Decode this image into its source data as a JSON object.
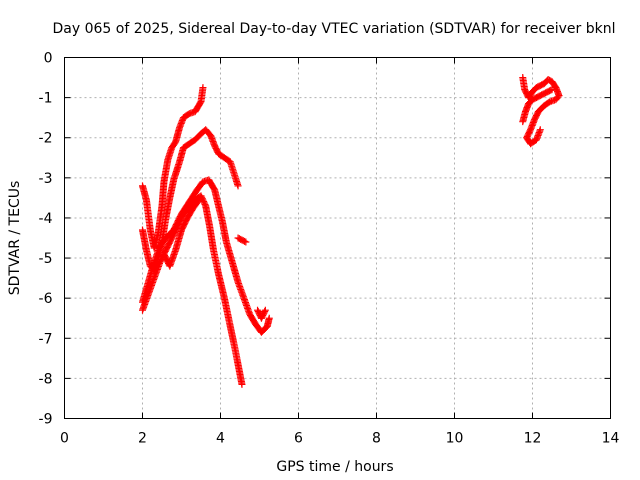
{
  "chart_data": {
    "type": "scatter",
    "title": "Day 065 of 2025, Sidereal Day-to-day VTEC variation (SDTVAR) for receiver bknl",
    "xlabel": "GPS time / hours",
    "ylabel": "SDTVAR / TECUs",
    "xlim": [
      0,
      14
    ],
    "ylim": [
      -9,
      0
    ],
    "xticks": [
      "0",
      "2",
      "4",
      "6",
      "8",
      "10",
      "12",
      "14"
    ],
    "yticks": [
      "0",
      "-1",
      "-2",
      "-3",
      "-4",
      "-5",
      "-6",
      "-7",
      "-8",
      "-9"
    ],
    "grid": true,
    "marker": "plus",
    "color": "#ff0000",
    "tracks": [
      [
        [
          2.0,
          -6.3
        ],
        [
          2.15,
          -5.9
        ],
        [
          2.3,
          -5.5
        ],
        [
          2.45,
          -5.1
        ],
        [
          2.6,
          -4.8
        ],
        [
          2.75,
          -4.5
        ],
        [
          2.9,
          -4.2
        ],
        [
          3.05,
          -3.9
        ],
        [
          3.2,
          -3.75
        ],
        [
          3.35,
          -3.55
        ],
        [
          3.5,
          -3.45
        ],
        [
          3.62,
          -3.7
        ],
        [
          3.72,
          -4.2
        ],
        [
          3.82,
          -4.8
        ],
        [
          3.95,
          -5.4
        ],
        [
          4.1,
          -6.0
        ],
        [
          4.25,
          -6.7
        ],
        [
          4.38,
          -7.3
        ],
        [
          4.5,
          -7.9
        ],
        [
          4.55,
          -8.15
        ]
      ],
      [
        [
          2.0,
          -6.1
        ],
        [
          2.15,
          -5.6
        ],
        [
          2.3,
          -5.1
        ],
        [
          2.45,
          -4.7
        ],
        [
          2.6,
          -4.5
        ],
        [
          2.8,
          -4.3
        ],
        [
          3.0,
          -3.9
        ],
        [
          3.2,
          -3.6
        ],
        [
          3.4,
          -3.3
        ],
        [
          3.55,
          -3.1
        ],
        [
          3.7,
          -3.05
        ],
        [
          3.85,
          -3.3
        ],
        [
          3.95,
          -3.7
        ],
        [
          4.05,
          -4.1
        ],
        [
          4.15,
          -4.6
        ],
        [
          4.3,
          -5.1
        ],
        [
          4.45,
          -5.6
        ],
        [
          4.6,
          -6.0
        ],
        [
          4.75,
          -6.4
        ],
        [
          4.9,
          -6.65
        ],
        [
          5.05,
          -6.85
        ],
        [
          5.2,
          -6.7
        ],
        [
          5.25,
          -6.5
        ]
      ],
      [
        [
          2.0,
          -4.3
        ],
        [
          2.1,
          -4.8
        ],
        [
          2.2,
          -5.2
        ],
        [
          2.3,
          -5.3
        ],
        [
          2.4,
          -5.0
        ],
        [
          2.5,
          -4.6
        ],
        [
          2.6,
          -4.0
        ],
        [
          2.7,
          -3.5
        ],
        [
          2.8,
          -3.05
        ],
        [
          2.95,
          -2.6
        ],
        [
          3.05,
          -2.25
        ],
        [
          3.2,
          -2.15
        ],
        [
          3.35,
          -2.05
        ],
        [
          3.5,
          -1.9
        ],
        [
          3.62,
          -1.8
        ],
        [
          3.75,
          -1.95
        ],
        [
          3.85,
          -2.2
        ],
        [
          3.95,
          -2.4
        ],
        [
          4.1,
          -2.5
        ],
        [
          4.25,
          -2.6
        ],
        [
          4.35,
          -2.9
        ],
        [
          4.45,
          -3.2
        ]
      ],
      [
        [
          2.0,
          -3.2
        ],
        [
          2.1,
          -3.55
        ],
        [
          2.2,
          -4.3
        ],
        [
          2.3,
          -4.75
        ],
        [
          2.4,
          -4.4
        ],
        [
          2.5,
          -3.7
        ],
        [
          2.55,
          -3.1
        ],
        [
          2.65,
          -2.55
        ],
        [
          2.75,
          -2.25
        ],
        [
          2.85,
          -2.1
        ],
        [
          2.95,
          -1.75
        ],
        [
          3.05,
          -1.5
        ],
        [
          3.2,
          -1.4
        ],
        [
          3.35,
          -1.35
        ],
        [
          3.5,
          -1.1
        ],
        [
          3.55,
          -0.75
        ]
      ],
      [
        [
          2.55,
          -4.9
        ],
        [
          2.7,
          -5.2
        ],
        [
          2.85,
          -4.8
        ],
        [
          3.0,
          -4.3
        ],
        [
          3.15,
          -4.0
        ],
        [
          3.3,
          -3.75
        ],
        [
          3.45,
          -3.55
        ]
      ],
      [
        [
          4.45,
          -4.5
        ],
        [
          4.55,
          -4.55
        ],
        [
          4.65,
          -4.6
        ]
      ],
      [
        [
          4.95,
          -6.3
        ],
        [
          5.05,
          -6.5
        ],
        [
          5.15,
          -6.3
        ]
      ],
      [
        [
          11.75,
          -0.5
        ],
        [
          11.8,
          -0.8
        ],
        [
          11.9,
          -1.0
        ],
        [
          12.0,
          -0.85
        ],
        [
          12.1,
          -0.75
        ],
        [
          12.2,
          -0.7
        ],
        [
          12.3,
          -0.65
        ],
        [
          12.4,
          -0.55
        ],
        [
          12.5,
          -0.6
        ],
        [
          12.6,
          -0.75
        ],
        [
          12.68,
          -0.95
        ],
        [
          12.6,
          -1.05
        ],
        [
          12.45,
          -1.1
        ],
        [
          12.3,
          -1.2
        ],
        [
          12.15,
          -1.35
        ],
        [
          12.05,
          -1.55
        ],
        [
          11.95,
          -1.8
        ],
        [
          11.85,
          -2.0
        ],
        [
          11.95,
          -2.15
        ],
        [
          12.1,
          -2.05
        ],
        [
          12.2,
          -1.8
        ]
      ],
      [
        [
          11.75,
          -1.6
        ],
        [
          11.82,
          -1.35
        ],
        [
          11.9,
          -1.15
        ],
        [
          12.0,
          -1.05
        ],
        [
          12.1,
          -1.0
        ],
        [
          12.2,
          -0.95
        ],
        [
          12.3,
          -0.9
        ],
        [
          12.4,
          -0.85
        ],
        [
          12.5,
          -0.8
        ]
      ]
    ]
  }
}
